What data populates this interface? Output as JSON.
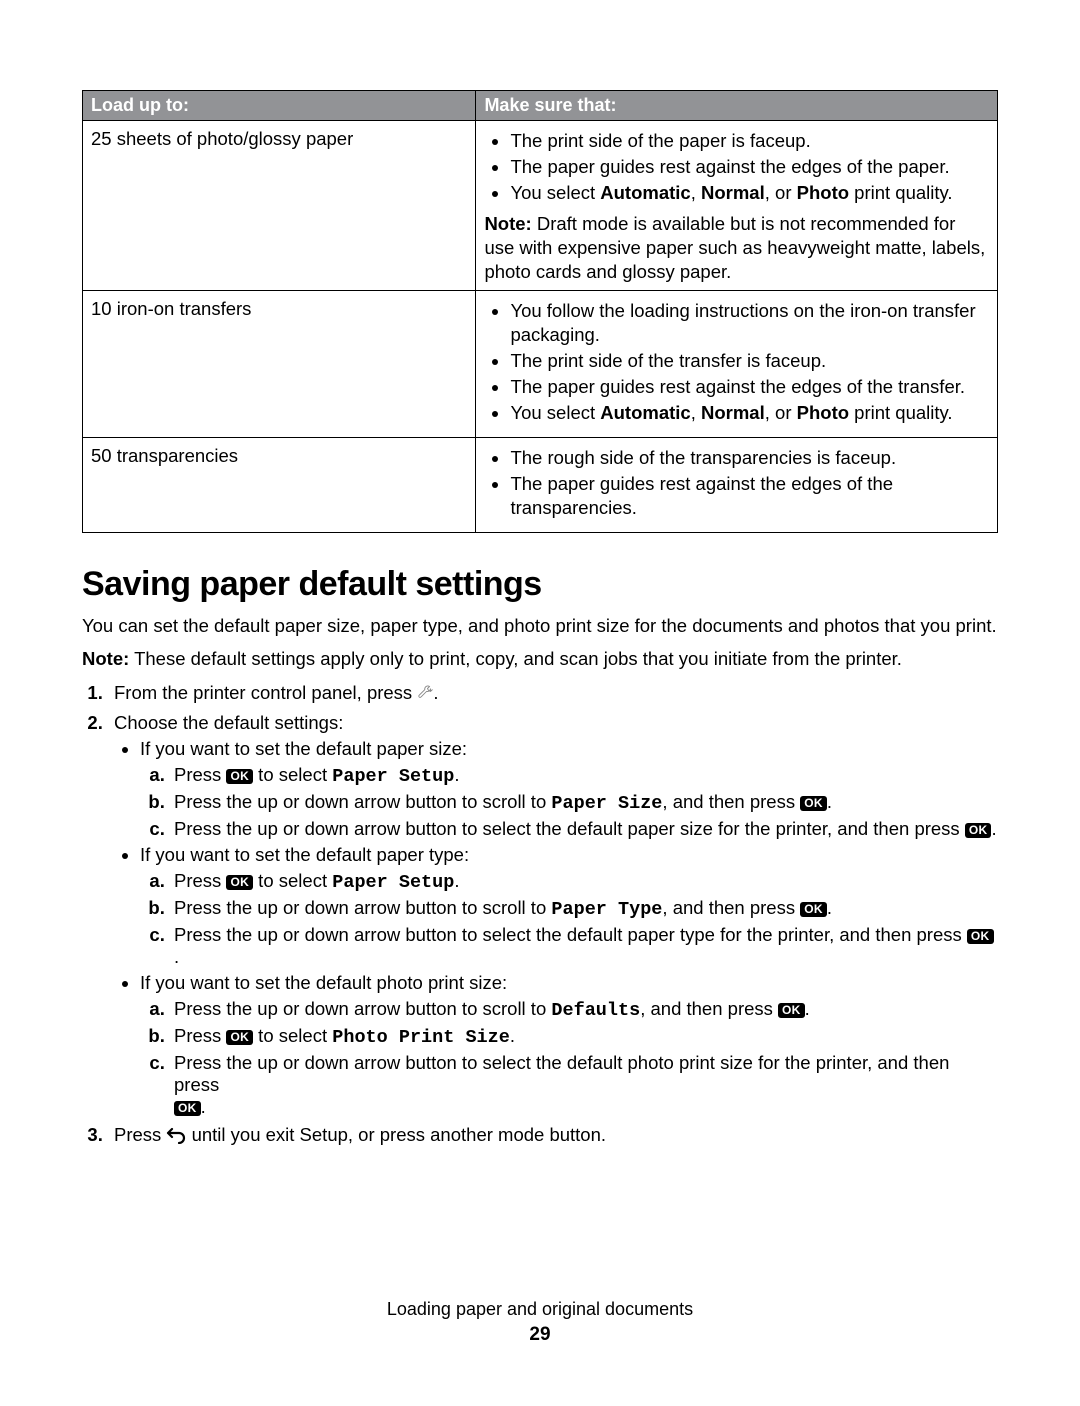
{
  "table": {
    "header": {
      "col1": "Load up to:",
      "col2": "Make sure that:"
    },
    "rows": [
      {
        "load": "25 sheets of photo/glossy paper",
        "bullets": [
          "The print side of the paper is faceup.",
          "The paper guides rest against the edges of the paper.",
          "You select <b>Automatic</b>, <b>Normal</b>, or <b>Photo</b> print quality."
        ],
        "note_label": "Note:",
        "note": " Draft mode is available but is not recommended for use with expensive paper such as heavyweight matte, labels, photo cards and glossy paper."
      },
      {
        "load": "10 iron-on transfers",
        "bullets": [
          "You follow the loading instructions on the iron-on transfer packaging.",
          "The print side of the transfer is faceup.",
          "The paper guides rest against the edges of the transfer.",
          "You select <b>Automatic</b>, <b>Normal</b>, or <b>Photo</b> print quality."
        ]
      },
      {
        "load": "50 transparencies",
        "bullets": [
          "The rough side of the transparencies is faceup.",
          "The paper guides rest against the edges of the transparencies."
        ]
      }
    ]
  },
  "heading": "Saving paper default settings",
  "intro": "You can set the default paper size, paper type, and photo print size for the documents and photos that you print.",
  "note_label": "Note:",
  "note_body": " These default settings apply only to print, copy, and scan jobs that you initiate from the printer.",
  "steps": {
    "s1_prefix": "From the printer control panel, press ",
    "s1_suffix": ".",
    "s2": "Choose the default settings:",
    "paper_size_intro": "If you want to set the default paper size:",
    "paper_type_intro": "If you want to set the default paper type:",
    "photo_intro": "If you want to set the default photo print size:",
    "press": "Press ",
    "to_select": " to select ",
    "paper_setup": "Paper Setup",
    "scroll_to": "Press the up or down arrow button to scroll to ",
    "then_press": ", and then press ",
    "paper_size": "Paper Size",
    "select_default_size": "Press the up or down arrow button to select the default paper size for the printer, and then press ",
    "paper_type": "Paper Type",
    "select_default_type": "Press the up or down arrow button to select the default paper type for the printer, and then press ",
    "defaults": "Defaults",
    "photo_print_size": "Photo Print Size",
    "select_default_photo": "Press the up or down arrow button to select the default photo print size for the printer, and then press ",
    "s3_prefix": "Press ",
    "s3_suffix": " until you exit Setup, or press another mode button.",
    "period": "."
  },
  "ok_label": "OK",
  "footer": {
    "title": "Loading paper and original documents",
    "page": "29"
  }
}
